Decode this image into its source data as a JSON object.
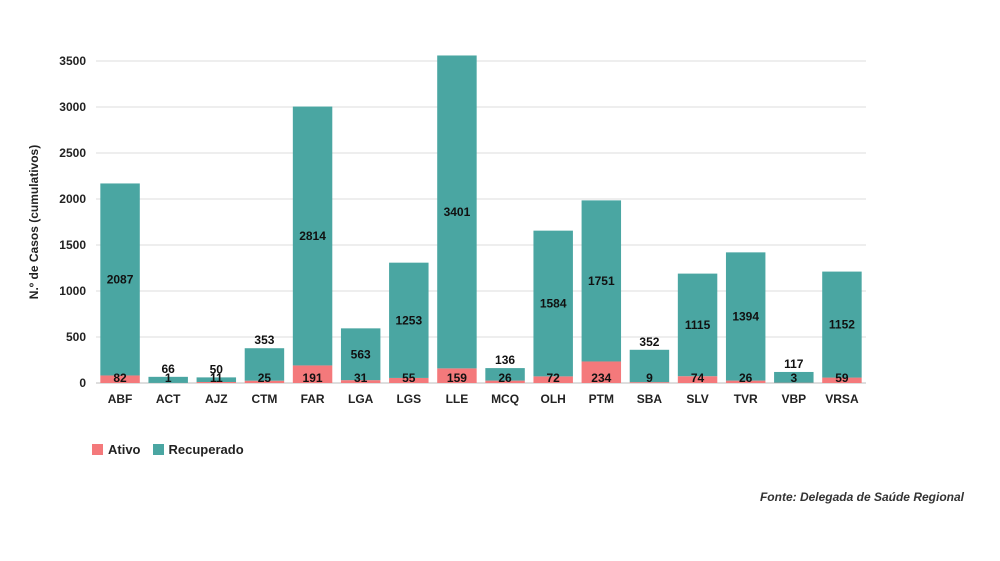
{
  "chart_data": {
    "type": "bar",
    "stacked": true,
    "ylabel": "N.º de Casos (cumulativos)",
    "ylim": [
      0,
      3500
    ],
    "yticks": [
      0,
      500,
      1000,
      1500,
      2000,
      2500,
      3000,
      3500
    ],
    "grid": true,
    "legend_position": "bottom-left",
    "categories": [
      "ABF",
      "ACT",
      "AJZ",
      "CTM",
      "FAR",
      "LGA",
      "LGS",
      "LLE",
      "MCQ",
      "OLH",
      "PTM",
      "SBA",
      "SLV",
      "TVR",
      "VBP",
      "VRSA"
    ],
    "series": [
      {
        "name": "Ativo",
        "color": "#f4797b",
        "values": [
          82,
          1,
          11,
          25,
          191,
          31,
          55,
          159,
          26,
          72,
          234,
          9,
          74,
          26,
          3,
          59
        ]
      },
      {
        "name": "Recuperado",
        "color": "#4aa6a2",
        "values": [
          2087,
          66,
          50,
          353,
          2814,
          563,
          1253,
          3401,
          136,
          1584,
          1751,
          352,
          1115,
          1394,
          117,
          1152
        ]
      }
    ]
  },
  "source": "Fonte: Delegada de Saúde Regional"
}
